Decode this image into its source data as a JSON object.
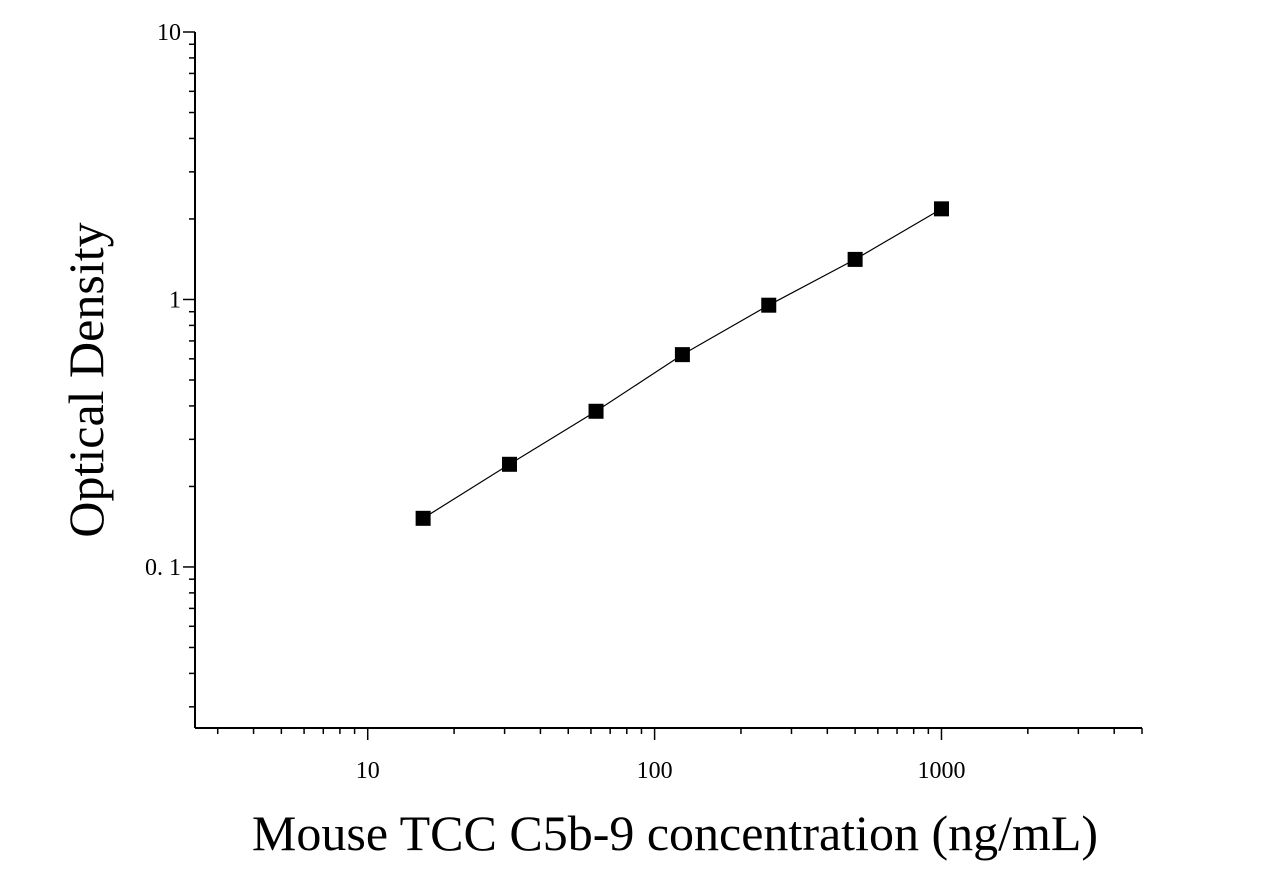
{
  "chart_data": {
    "type": "scatter",
    "xlabel": "Mouse TCC C5b-9 concentration (ng/mL)",
    "ylabel": "Optical Density",
    "x_scale": "log",
    "y_scale": "log",
    "xlim": [
      2.5,
      5000
    ],
    "ylim": [
      0.025,
      10
    ],
    "x_ticks": [
      {
        "value": 10,
        "label": "10"
      },
      {
        "value": 100,
        "label": "100"
      },
      {
        "value": 1000,
        "label": "1000"
      }
    ],
    "y_ticks": [
      {
        "value": 10,
        "label": "10"
      },
      {
        "value": 1,
        "label": "1"
      },
      {
        "value": 0.1,
        "label": "0. 1"
      }
    ],
    "grid": false,
    "legend": "none",
    "series": [
      {
        "marker": "square",
        "line": true,
        "color": "#000000",
        "x": [
          15.6,
          31.2,
          62.5,
          125,
          250,
          500,
          1000
        ],
        "y": [
          0.152,
          0.242,
          0.382,
          0.622,
          0.952,
          1.412,
          2.182
        ]
      }
    ]
  }
}
